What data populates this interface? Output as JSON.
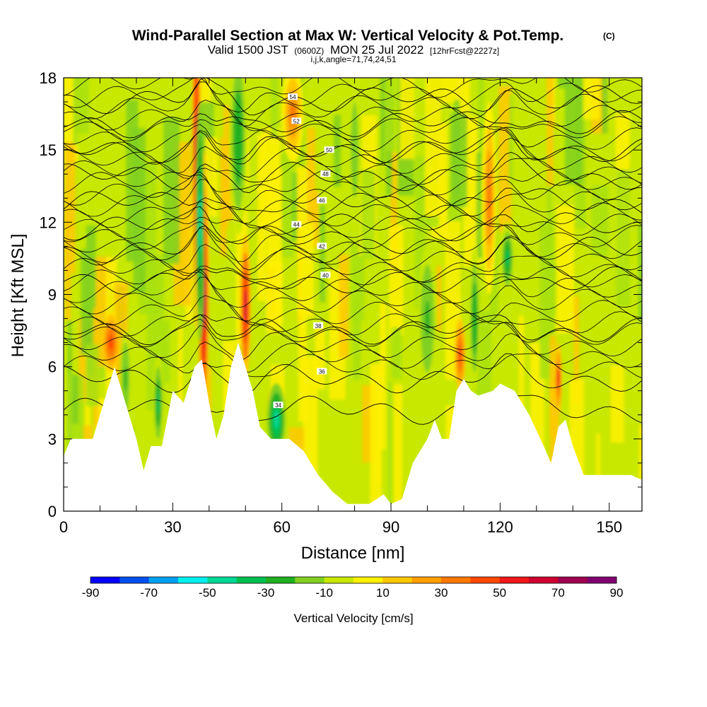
{
  "chart_data": {
    "type": "heatmap",
    "title": "Wind-Parallel Section at Max W: Vertical Velocity & Pot.Temp.",
    "copyright": "(C)",
    "valid_prefix": "Valid 1500 JST",
    "valid_utc": "(0600Z)",
    "valid_date": "MON 25 Jul 2022",
    "forecast": "[12hrFcst@2227z]",
    "grid_info": "i,j,k,angle=71,74,24,51",
    "xlabel": "Distance [nm]",
    "ylabel": "Height [Kft MSL]",
    "xlim": [
      0,
      159
    ],
    "ylim": [
      0,
      18
    ],
    "x_ticks": [
      "0",
      "30",
      "60",
      "90",
      "120",
      "150"
    ],
    "y_ticks": [
      "0",
      "3",
      "6",
      "9",
      "12",
      "15",
      "18"
    ],
    "colorbar": {
      "label": "Vertical Velocity [cm/s]",
      "ticks": [
        "-90",
        "-70",
        "-50",
        "-30",
        "-10",
        "10",
        "30",
        "50",
        "70",
        "90"
      ],
      "colors": [
        "#0000ff",
        "#0050f0",
        "#00a0f0",
        "#00f0f0",
        "#00d898",
        "#00c050",
        "#20b020",
        "#80d020",
        "#c8e800",
        "#fff000",
        "#ffc800",
        "#ffa000",
        "#ff7800",
        "#ff4800",
        "#f01818",
        "#d00030",
        "#a00050",
        "#800070"
      ]
    },
    "terrain": [
      [
        0,
        2.3
      ],
      [
        2,
        3
      ],
      [
        8,
        3
      ],
      [
        12,
        5
      ],
      [
        14,
        6
      ],
      [
        16,
        5
      ],
      [
        18,
        4
      ],
      [
        20,
        3
      ],
      [
        22,
        1.7
      ],
      [
        24,
        2.7
      ],
      [
        27,
        2.7
      ],
      [
        30,
        5
      ],
      [
        33,
        4.5
      ],
      [
        36,
        6
      ],
      [
        38,
        6.3
      ],
      [
        40,
        4.5
      ],
      [
        42,
        3
      ],
      [
        44,
        4
      ],
      [
        46,
        6
      ],
      [
        48,
        7
      ],
      [
        50,
        6
      ],
      [
        52,
        5
      ],
      [
        54,
        3.5
      ],
      [
        57,
        3
      ],
      [
        62,
        3
      ],
      [
        66,
        2.5
      ],
      [
        70,
        1.5
      ],
      [
        74,
        0.8
      ],
      [
        78,
        0.3
      ],
      [
        84,
        0.3
      ],
      [
        88,
        0.7
      ],
      [
        90,
        0.3
      ],
      [
        93,
        0.5
      ],
      [
        96,
        2
      ],
      [
        100,
        3
      ],
      [
        102,
        3.8
      ],
      [
        104,
        3
      ],
      [
        106,
        3
      ],
      [
        108,
        5
      ],
      [
        110,
        5.5
      ],
      [
        112,
        5
      ],
      [
        114,
        4.8
      ],
      [
        118,
        5
      ],
      [
        120,
        5.3
      ],
      [
        124,
        5
      ],
      [
        128,
        4
      ],
      [
        132,
        2.7
      ],
      [
        134,
        2
      ],
      [
        136,
        3.5
      ],
      [
        138,
        3.8
      ],
      [
        140,
        2.7
      ],
      [
        143,
        1.5
      ],
      [
        150,
        1.5
      ],
      [
        156,
        1.5
      ],
      [
        159,
        1.3
      ]
    ],
    "updrafts": [
      {
        "x": 36.5,
        "y": 15,
        "w": 1.2,
        "h": 7.5,
        "max_cm_s": 60
      },
      {
        "x": 38.5,
        "y": 9,
        "w": 1.5,
        "h": 6,
        "max_cm_s": 70
      },
      {
        "x": 50,
        "y": 8.5,
        "w": 1.5,
        "h": 3,
        "max_cm_s": 60
      },
      {
        "x": 13,
        "y": 7,
        "w": 2.5,
        "h": 1.2,
        "max_cm_s": 45
      },
      {
        "x": 63,
        "y": 16.5,
        "w": 3,
        "h": 2,
        "max_cm_s": 35
      },
      {
        "x": 109,
        "y": 6.5,
        "w": 1.5,
        "h": 1.5,
        "max_cm_s": 40
      },
      {
        "x": 136,
        "y": 5.5,
        "w": 1,
        "h": 1.5,
        "max_cm_s": 50
      },
      {
        "x": 117,
        "y": 13,
        "w": 2,
        "h": 4,
        "max_cm_s": 30
      },
      {
        "x": 57,
        "y": 4,
        "w": 1,
        "h": 1,
        "max_cm_s": 40
      }
    ],
    "downdrafts": [
      {
        "x": 37.5,
        "y": 12,
        "w": 1.2,
        "h": 5,
        "min_cm_s": -50
      },
      {
        "x": 58.5,
        "y": 3.8,
        "w": 2.5,
        "h": 1.5,
        "min_cm_s": -50
      },
      {
        "x": 122,
        "y": 10.5,
        "w": 2,
        "h": 1.5,
        "min_cm_s": -40
      },
      {
        "x": 48,
        "y": 15.5,
        "w": 2.5,
        "h": 4,
        "min_cm_s": -30
      },
      {
        "x": 26,
        "y": 4.5,
        "w": 1.5,
        "h": 2,
        "min_cm_s": -35
      },
      {
        "x": 113,
        "y": 8,
        "w": 1.5,
        "h": 3,
        "min_cm_s": -30
      },
      {
        "x": 100,
        "y": 8,
        "w": 2.5,
        "h": 3,
        "min_cm_s": -25
      },
      {
        "x": 17,
        "y": 5.5,
        "w": 1.5,
        "h": 2,
        "min_cm_s": -25
      },
      {
        "x": 80,
        "y": 15,
        "w": 2,
        "h": 4,
        "min_cm_s": -20
      }
    ],
    "theta_contours": [
      {
        "level": 34,
        "label": "34",
        "label_x": 59,
        "label_y": 4.4
      },
      {
        "level": 36,
        "label": "36",
        "label_x": 71,
        "label_y": 5.8
      },
      {
        "level": 38,
        "label": "38",
        "label_x": 70,
        "label_y": 7.7
      },
      {
        "level": 40,
        "label": "40",
        "label_x": 72,
        "label_y": 9.8
      },
      {
        "level": 42,
        "label": "42",
        "label_x": 71,
        "label_y": 11
      },
      {
        "level": 44,
        "label": "44",
        "label_x": 64,
        "label_y": 11.9
      },
      {
        "level": 46,
        "label": "46",
        "label_x": 71,
        "label_y": 12.9
      },
      {
        "level": 48,
        "label": "48",
        "label_x": 72,
        "label_y": 14
      },
      {
        "level": 50,
        "label": "50",
        "label_x": 73,
        "label_y": 15
      },
      {
        "level": 52,
        "label": "52",
        "label_x": 64,
        "label_y": 16.2
      },
      {
        "level": 54,
        "label": "54",
        "label_x": 63,
        "label_y": 17.2
      }
    ]
  }
}
